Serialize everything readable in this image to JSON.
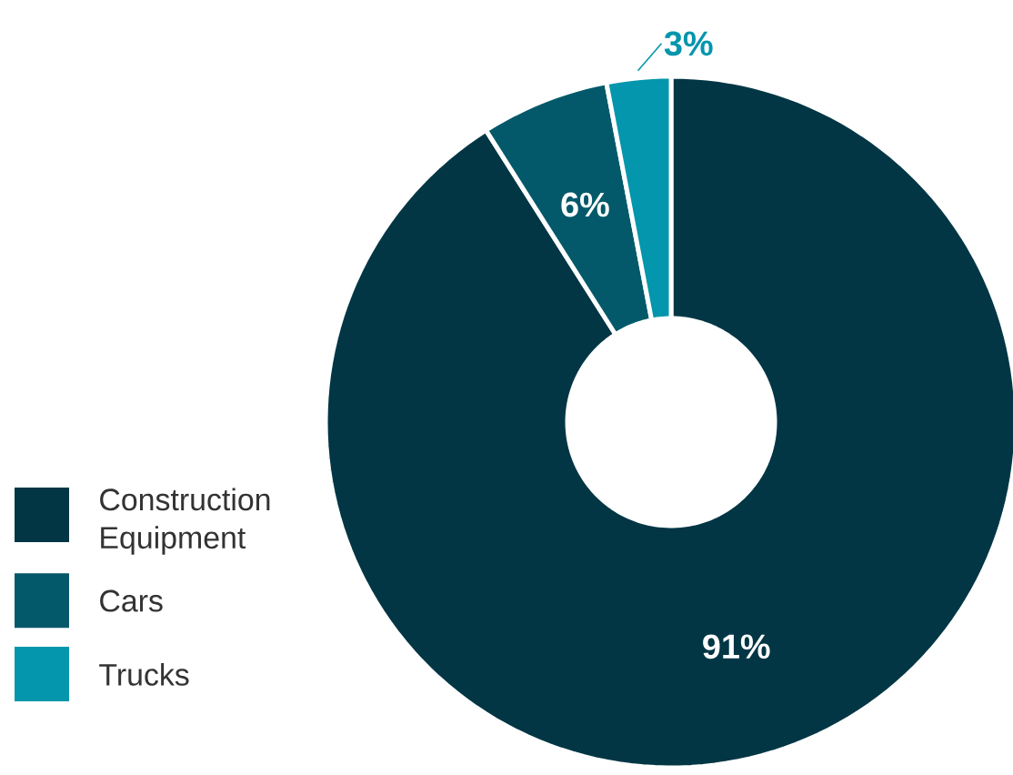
{
  "chart_data": {
    "type": "donut",
    "categories": [
      "Construction Equipment",
      "Cars",
      "Trucks"
    ],
    "values": [
      91,
      6,
      3
    ],
    "colors": [
      "#023645",
      "#03596a",
      "#0396ac"
    ],
    "value_labels": [
      "91%",
      "6%",
      "3%"
    ],
    "legend": "bottom left"
  }
}
